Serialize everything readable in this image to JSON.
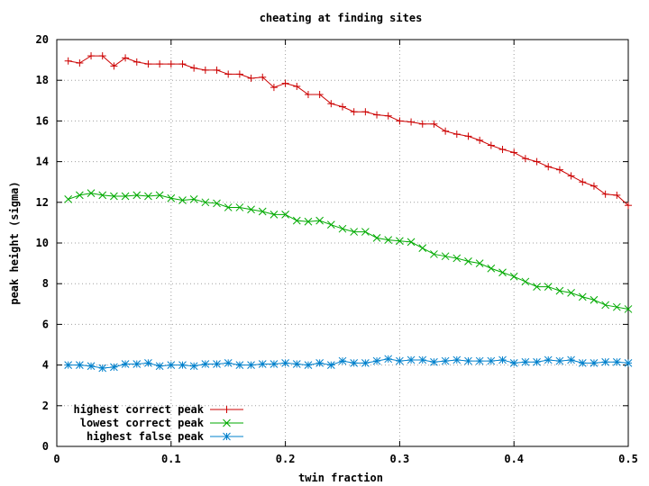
{
  "chart_data": {
    "type": "line",
    "title": "cheating at finding sites",
    "xlabel": "twin fraction",
    "ylabel": "peak height (sigma)",
    "xlim": [
      0,
      0.5
    ],
    "ylim": [
      0,
      20
    ],
    "x_ticks": [
      {
        "value": 0,
        "label": "0"
      },
      {
        "value": 0.1,
        "label": "0.1"
      },
      {
        "value": 0.2,
        "label": "0.2"
      },
      {
        "value": 0.3,
        "label": "0.3"
      },
      {
        "value": 0.4,
        "label": "0.4"
      },
      {
        "value": 0.5,
        "label": "0.5"
      }
    ],
    "y_ticks": [
      {
        "value": 0,
        "label": "0"
      },
      {
        "value": 2,
        "label": "2"
      },
      {
        "value": 4,
        "label": "4"
      },
      {
        "value": 6,
        "label": "6"
      },
      {
        "value": 8,
        "label": "8"
      },
      {
        "value": 10,
        "label": "10"
      },
      {
        "value": 12,
        "label": "12"
      },
      {
        "value": 14,
        "label": "14"
      },
      {
        "value": 16,
        "label": "16"
      },
      {
        "value": 18,
        "label": "18"
      },
      {
        "value": 20,
        "label": "20"
      }
    ],
    "grid": true,
    "legend_position": "bottom-left",
    "x": [
      0.01,
      0.02,
      0.03,
      0.04,
      0.05,
      0.06,
      0.07,
      0.08,
      0.09,
      0.1,
      0.11,
      0.12,
      0.13,
      0.14,
      0.15,
      0.16,
      0.17,
      0.18,
      0.19,
      0.2,
      0.21,
      0.22,
      0.23,
      0.24,
      0.25,
      0.26,
      0.27,
      0.28,
      0.29,
      0.3,
      0.31,
      0.32,
      0.33,
      0.34,
      0.35,
      0.36,
      0.37,
      0.38,
      0.39,
      0.4,
      0.41,
      0.42,
      0.43,
      0.44,
      0.45,
      0.46,
      0.47,
      0.48,
      0.49,
      0.5
    ],
    "series": [
      {
        "name": "highest correct peak",
        "color": "#cc0000",
        "marker": "plus",
        "values": [
          18.95,
          18.85,
          19.2,
          19.2,
          18.7,
          19.1,
          18.9,
          18.8,
          18.8,
          18.8,
          18.8,
          18.6,
          18.5,
          18.5,
          18.3,
          18.3,
          18.1,
          18.15,
          17.65,
          17.85,
          17.7,
          17.3,
          17.3,
          16.85,
          16.7,
          16.45,
          16.45,
          16.3,
          16.25,
          16.0,
          15.95,
          15.85,
          15.85,
          15.5,
          15.35,
          15.25,
          15.05,
          14.8,
          14.6,
          14.45,
          14.15,
          14.0,
          13.75,
          13.6,
          13.3,
          13.0,
          12.8,
          12.4,
          12.35,
          11.85
        ]
      },
      {
        "name": "lowest correct peak",
        "color": "#00aa00",
        "marker": "x",
        "values": [
          12.15,
          12.35,
          12.45,
          12.35,
          12.3,
          12.3,
          12.35,
          12.3,
          12.35,
          12.2,
          12.1,
          12.15,
          12.0,
          11.95,
          11.75,
          11.75,
          11.65,
          11.55,
          11.4,
          11.4,
          11.1,
          11.05,
          11.1,
          10.9,
          10.7,
          10.55,
          10.55,
          10.25,
          10.15,
          10.1,
          10.05,
          9.75,
          9.45,
          9.35,
          9.25,
          9.1,
          9.0,
          8.75,
          8.55,
          8.35,
          8.1,
          7.85,
          7.85,
          7.65,
          7.55,
          7.35,
          7.2,
          6.95,
          6.85,
          6.75
        ]
      },
      {
        "name": "highest false peak",
        "color": "#0080cc",
        "marker": "star",
        "values": [
          4.0,
          4.0,
          3.95,
          3.85,
          3.9,
          4.05,
          4.05,
          4.1,
          3.95,
          4.0,
          4.0,
          3.95,
          4.05,
          4.05,
          4.1,
          4.0,
          4.0,
          4.05,
          4.05,
          4.1,
          4.05,
          4.0,
          4.1,
          4.0,
          4.2,
          4.1,
          4.1,
          4.2,
          4.3,
          4.2,
          4.25,
          4.25,
          4.15,
          4.2,
          4.25,
          4.2,
          4.2,
          4.2,
          4.25,
          4.1,
          4.15,
          4.15,
          4.25,
          4.2,
          4.25,
          4.1,
          4.1,
          4.15,
          4.15,
          4.1
        ]
      }
    ]
  }
}
